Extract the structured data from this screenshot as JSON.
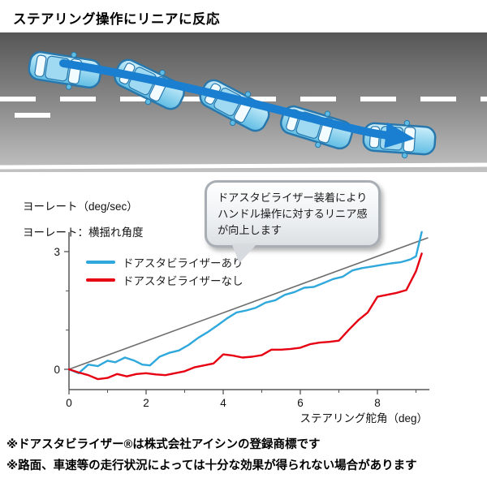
{
  "page": {
    "title": "ステアリング操作にリニアに反応",
    "footnote1": "※ドアスタビライザー®は株式会社アイシンの登録商標です",
    "footnote2": "※路面、車速等の走行状況によっては十分な効果が得られない場合があります"
  },
  "callout": {
    "line1": "ドアスタビライザー装着により",
    "line2": "ハンドル操作に対するリニア感",
    "line3": "が向上します"
  },
  "axis": {
    "ylabel_line1": "ヨーレート（deg/sec）",
    "ylabel_line2": "ヨーレート：横揺れ角度",
    "xlabel": "ステアリング舵角（deg）"
  },
  "legend": {
    "with_label": "ドアスタビライザーあり",
    "without_label": "ドアスタビライザーなし"
  },
  "colors": {
    "with_line": "#2fa8dc",
    "without_line": "#e60012",
    "reference_line": "#6e6e6e",
    "arrow": "#1a7fd0",
    "car_body": "#7ecbe9"
  },
  "chart_data": {
    "type": "line",
    "title": "ステアリング操作にリニアに反応",
    "xlabel": "ステアリング舵角（deg）",
    "ylabel": "ヨーレート（deg/sec）",
    "xlim": [
      0,
      9.4
    ],
    "ylim": [
      -0.5,
      3.6
    ],
    "x_ticks": [
      0,
      2,
      4,
      6,
      8
    ],
    "x_minor_ticks": [
      1,
      3,
      5,
      7,
      9
    ],
    "y_ticks": [
      0,
      3
    ],
    "y_minor_ticks": [
      1,
      2
    ],
    "grid": false,
    "legend_position": "upper-left-inside",
    "series": [
      {
        "name": "リニア基準線",
        "color": "#6e6e6e",
        "width": 1.6,
        "x": [
          0,
          9.3
        ],
        "y": [
          0,
          3.35
        ]
      },
      {
        "name": "ドアスタビライザーあり",
        "color": "#2fa8dc",
        "width": 2.4,
        "x": [
          0,
          0.25,
          0.5,
          0.75,
          1.0,
          1.2,
          1.45,
          1.7,
          1.9,
          2.1,
          2.35,
          2.6,
          2.85,
          3.1,
          3.35,
          3.6,
          3.85,
          4.1,
          4.35,
          4.6,
          4.85,
          5.1,
          5.35,
          5.6,
          5.85,
          6.1,
          6.35,
          6.6,
          6.85,
          7.1,
          7.35,
          7.6,
          7.85,
          8.1,
          8.35,
          8.6,
          8.85,
          9.0,
          9.15
        ],
        "y": [
          0,
          -0.1,
          0.12,
          0.08,
          0.22,
          0.18,
          0.3,
          0.22,
          0.12,
          0.1,
          0.32,
          0.42,
          0.48,
          0.62,
          0.8,
          0.95,
          1.12,
          1.3,
          1.45,
          1.5,
          1.57,
          1.7,
          1.76,
          1.9,
          1.97,
          2.08,
          2.1,
          2.2,
          2.3,
          2.36,
          2.52,
          2.58,
          2.62,
          2.66,
          2.7,
          2.73,
          2.8,
          2.88,
          3.5
        ]
      },
      {
        "name": "ドアスタビライザーなし",
        "color": "#e60012",
        "width": 2.4,
        "x": [
          0,
          0.25,
          0.5,
          0.75,
          1.0,
          1.25,
          1.5,
          1.75,
          2.0,
          2.25,
          2.5,
          2.75,
          3.0,
          3.25,
          3.5,
          3.75,
          4.0,
          4.25,
          4.5,
          4.75,
          5.0,
          5.25,
          5.5,
          5.75,
          6.0,
          6.25,
          6.5,
          6.75,
          7.0,
          7.25,
          7.5,
          7.75,
          8.0,
          8.25,
          8.5,
          8.75,
          9.0,
          9.15
        ],
        "y": [
          0,
          -0.08,
          -0.15,
          -0.25,
          -0.22,
          -0.12,
          -0.18,
          -0.12,
          -0.1,
          -0.13,
          -0.15,
          -0.1,
          -0.05,
          0.05,
          0.1,
          0.15,
          0.38,
          0.35,
          0.3,
          0.32,
          0.36,
          0.5,
          0.5,
          0.52,
          0.55,
          0.64,
          0.68,
          0.7,
          0.73,
          1.0,
          1.25,
          1.45,
          1.85,
          1.9,
          1.95,
          2.02,
          2.5,
          2.95
        ]
      }
    ]
  }
}
